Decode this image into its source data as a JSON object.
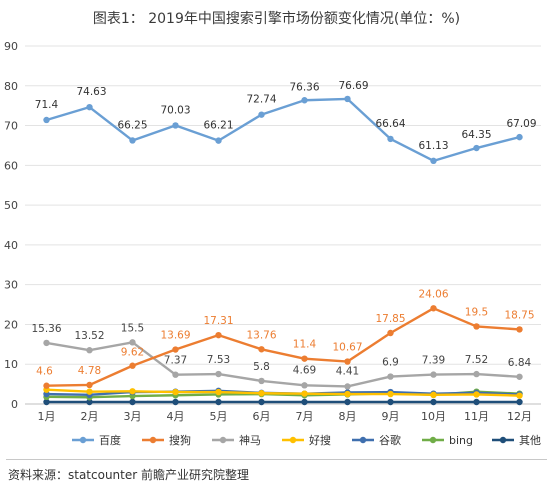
{
  "title": "图表1： 2019年中国搜索引擎市场份额变化情况(单位：%)",
  "source": "资料来源：statcounter 前瞻产业研究院整理",
  "chart_data": {
    "type": "line",
    "categories": [
      "1月",
      "2月",
      "3月",
      "4月",
      "5月",
      "6月",
      "7月",
      "8月",
      "9月",
      "10月",
      "11月",
      "12月"
    ],
    "ylim": [
      0,
      90
    ],
    "yticks": [
      0,
      10,
      20,
      30,
      40,
      50,
      60,
      70,
      80,
      90
    ],
    "grid": "horizontal",
    "legend_position": "bottom",
    "series": [
      {
        "name": "百度",
        "color": "#6a9fd4",
        "values": [
          71.4,
          74.63,
          66.25,
          70.03,
          66.21,
          72.74,
          76.36,
          76.69,
          66.64,
          61.13,
          64.35,
          67.09
        ],
        "labels": [
          "71.4",
          "74.63",
          "66.25",
          "70.03",
          "66.21",
          "72.74",
          "76.36",
          "76.69",
          "66.64",
          "61.13",
          "64.35",
          "67.09"
        ],
        "label_color": "#333333"
      },
      {
        "name": "搜狗",
        "color": "#ec7d31",
        "values": [
          4.6,
          4.78,
          9.62,
          13.69,
          17.31,
          13.76,
          11.4,
          10.67,
          17.85,
          24.06,
          19.5,
          18.75
        ],
        "labels": [
          "4.6",
          "4.78",
          "9.62",
          "13.69",
          "17.31",
          "13.76",
          "11.4",
          "10.67",
          "17.85",
          "24.06",
          "19.5",
          "18.75"
        ],
        "label_color": "#ec7d31"
      },
      {
        "name": "神马",
        "color": "#a6a6a6",
        "values": [
          15.36,
          13.52,
          15.5,
          7.37,
          7.53,
          5.8,
          4.69,
          4.41,
          6.9,
          7.39,
          7.52,
          6.84
        ],
        "labels": [
          "15.36",
          "13.52",
          "15.5",
          "7.37",
          "7.53",
          "5.8",
          "4.69",
          "4.41",
          "6.9",
          "7.39",
          "7.52",
          "6.84"
        ],
        "label_color": "#444444"
      },
      {
        "name": "好搜",
        "color": "#ffc000",
        "values": [
          3.6,
          3.1,
          3.2,
          3.0,
          3.0,
          2.7,
          2.6,
          2.5,
          2.5,
          2.3,
          2.4,
          2.1
        ],
        "labels": [],
        "label_color": "#ffc000"
      },
      {
        "name": "谷歌",
        "color": "#3f6fae",
        "values": [
          2.5,
          2.3,
          3.0,
          3.1,
          3.3,
          2.8,
          2.6,
          2.9,
          3.0,
          2.6,
          2.8,
          2.4
        ],
        "labels": [],
        "label_color": "#3f6fae"
      },
      {
        "name": "bing",
        "color": "#70ad47",
        "values": [
          1.8,
          1.7,
          2.0,
          2.2,
          2.4,
          2.5,
          2.2,
          2.4,
          2.7,
          2.3,
          3.1,
          2.6
        ],
        "labels": [],
        "label_color": "#70ad47"
      },
      {
        "name": "其他",
        "color": "#1f4e79",
        "values": [
          0.5,
          0.5,
          0.5,
          0.5,
          0.5,
          0.5,
          0.5,
          0.5,
          0.5,
          0.5,
          0.5,
          0.5
        ],
        "labels": [],
        "label_color": "#1f4e79"
      }
    ]
  }
}
